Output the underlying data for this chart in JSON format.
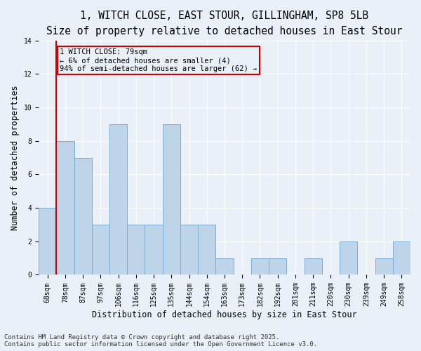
{
  "title_line1": "1, WITCH CLOSE, EAST STOUR, GILLINGHAM, SP8 5LB",
  "title_line2": "Size of property relative to detached houses in East Stour",
  "xlabel": "Distribution of detached houses by size in East Stour",
  "ylabel": "Number of detached properties",
  "categories": [
    "68sqm",
    "78sqm",
    "87sqm",
    "97sqm",
    "106sqm",
    "116sqm",
    "125sqm",
    "135sqm",
    "144sqm",
    "154sqm",
    "163sqm",
    "173sqm",
    "182sqm",
    "192sqm",
    "201sqm",
    "211sqm",
    "220sqm",
    "230sqm",
    "239sqm",
    "249sqm",
    "258sqm"
  ],
  "values": [
    4,
    8,
    7,
    3,
    9,
    3,
    3,
    9,
    3,
    3,
    1,
    0,
    1,
    1,
    0,
    1,
    0,
    2,
    0,
    1,
    2
  ],
  "bar_color": "#bed4e8",
  "bar_edge_color": "#7aadd4",
  "vline_color": "#cc0000",
  "annotation_line1": "1 WITCH CLOSE: 79sqm",
  "annotation_line2": "← 6% of detached houses are smaller (4)",
  "annotation_line3": "94% of semi-detached houses are larger (62) →",
  "annotation_box_color": "#cc0000",
  "footnote": "Contains HM Land Registry data © Crown copyright and database right 2025.\nContains public sector information licensed under the Open Government Licence v3.0.",
  "ylim": [
    0,
    14
  ],
  "yticks": [
    0,
    2,
    4,
    6,
    8,
    10,
    12,
    14
  ],
  "background_color": "#eaf0f8",
  "grid_color": "#ffffff",
  "title_fontsize": 10.5,
  "subtitle_fontsize": 9.5,
  "axis_label_fontsize": 8.5,
  "tick_fontsize": 7,
  "footnote_fontsize": 6.5,
  "annotation_fontsize": 7.5
}
